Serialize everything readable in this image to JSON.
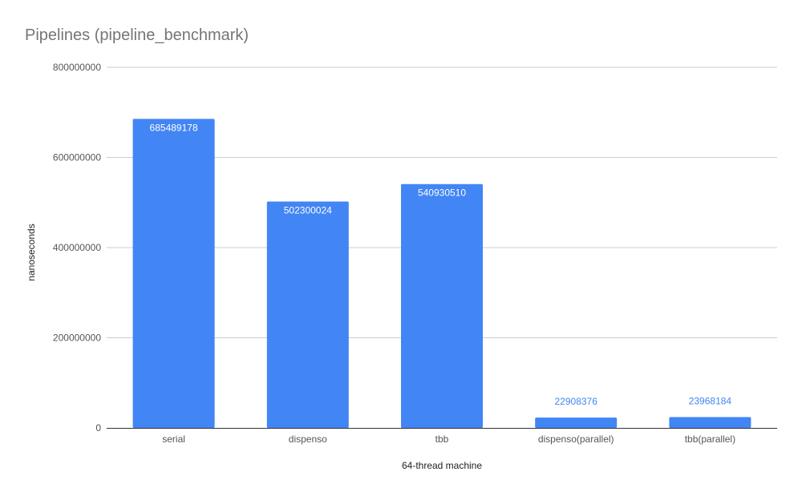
{
  "chart_data": {
    "type": "bar",
    "title": "Pipelines (pipeline_benchmark)",
    "xlabel": "64-thread machine",
    "ylabel": "nanoseconds",
    "categories": [
      "serial",
      "dispenso",
      "tbb",
      "dispenso(parallel)",
      "tbb(parallel)"
    ],
    "values": [
      685489178,
      502300024,
      540930510,
      22908376,
      23968184
    ],
    "data_labels": [
      "685489178",
      "502300024",
      "540930510",
      "22908376",
      "23968184"
    ],
    "ylim": [
      0,
      800000000
    ],
    "yticks": [
      0,
      200000000,
      400000000,
      600000000,
      800000000
    ],
    "ytick_labels": [
      "0",
      "200000000",
      "400000000",
      "600000000",
      "800000000"
    ],
    "grid": true,
    "legend": "none",
    "colors": {
      "bar": "#4285f4",
      "label_inside": "#ffffff",
      "label_outside": "#4285f4"
    }
  }
}
